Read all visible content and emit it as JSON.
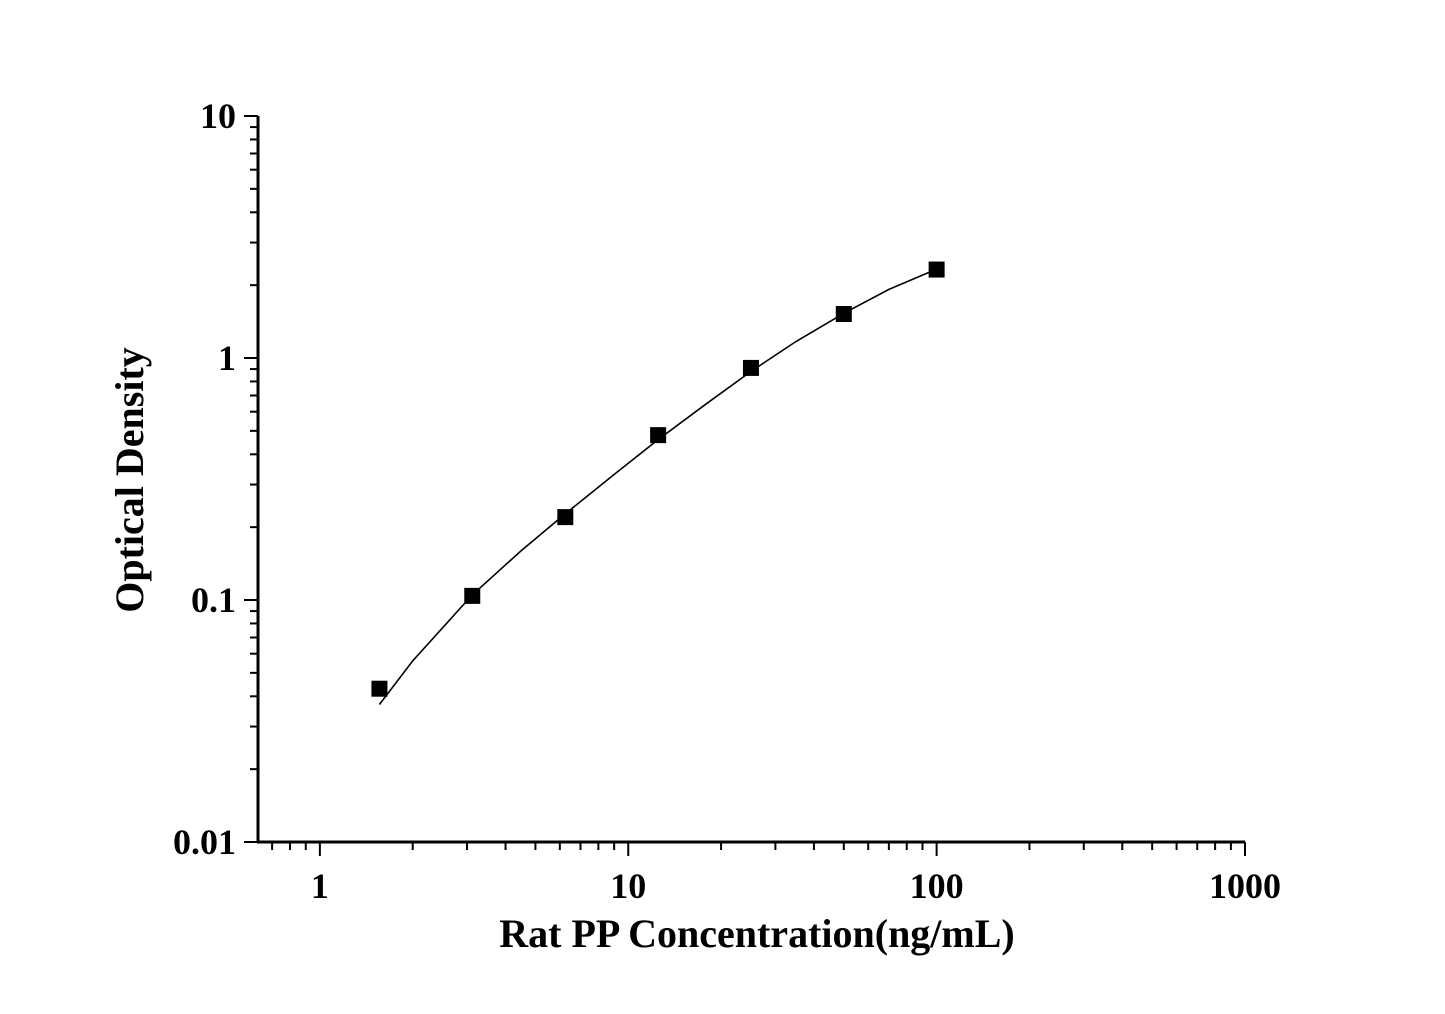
{
  "chart_data": {
    "type": "scatter",
    "xlabel": "Rat PP Concentration(ng/mL)",
    "ylabel": "Optical Density",
    "x_scale": "log",
    "y_scale": "log",
    "xlim": [
      0.63,
      1000
    ],
    "ylim": [
      0.01,
      10
    ],
    "x_ticks": [
      {
        "value": 1,
        "label": "1"
      },
      {
        "value": 10,
        "label": "10"
      },
      {
        "value": 100,
        "label": "100"
      },
      {
        "value": 1000,
        "label": "1000"
      }
    ],
    "y_ticks": [
      {
        "value": 0.01,
        "label": "0.01"
      },
      {
        "value": 0.1,
        "label": "0.1"
      },
      {
        "value": 1,
        "label": "1"
      },
      {
        "value": 10,
        "label": "10"
      }
    ],
    "grid": false,
    "legend": "none",
    "series": [
      {
        "marker": "square",
        "color": "#000000",
        "x": [
          1.56,
          3.12,
          6.25,
          12.5,
          25,
          50,
          100
        ],
        "y": [
          0.043,
          0.104,
          0.22,
          0.48,
          0.91,
          1.52,
          2.32
        ]
      }
    ],
    "fit_curve": {
      "color": "#000000",
      "x": [
        1.56,
        2.0,
        3.12,
        4.5,
        6.25,
        9.0,
        12.5,
        18.0,
        25,
        35,
        50,
        70,
        100
      ],
      "y": [
        0.037,
        0.056,
        0.105,
        0.16,
        0.227,
        0.33,
        0.46,
        0.65,
        0.88,
        1.17,
        1.53,
        1.92,
        2.33
      ]
    }
  }
}
